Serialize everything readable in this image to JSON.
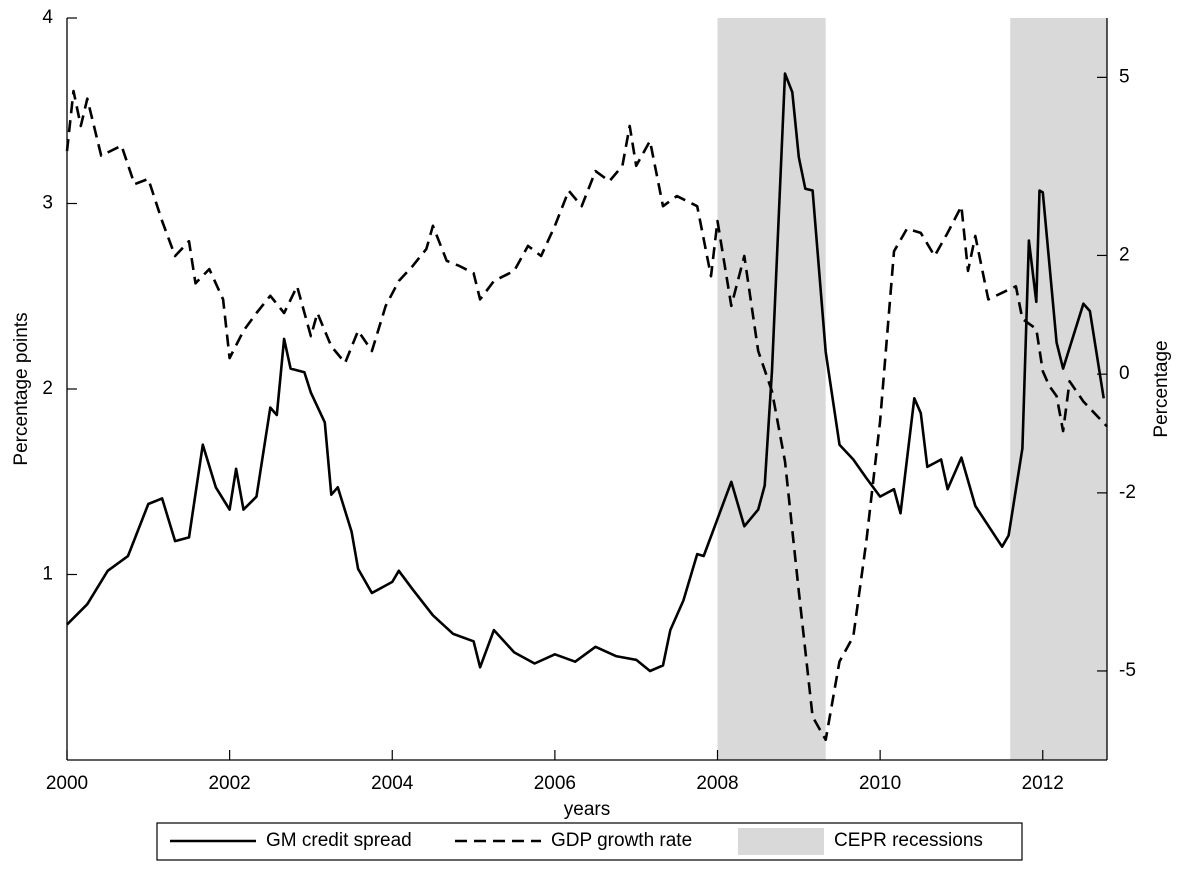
{
  "chart_data": {
    "type": "line",
    "x_label": "years",
    "y_label": "Percentage points",
    "y2_label": "Percentage",
    "xlim": [
      2000,
      2012.79
    ],
    "xticks": [
      2000,
      2002,
      2004,
      2006,
      2008,
      2010,
      2012
    ],
    "ylim": [
      0,
      4
    ],
    "yticks": [
      1,
      2,
      3,
      4
    ],
    "y2lim": [
      -6.5,
      6.0
    ],
    "y2ticks": [
      -5,
      -2,
      0,
      2,
      5
    ],
    "legend": "bottom-outside",
    "recessions": {
      "name": "CEPR recessions",
      "color": "#d9d9d9",
      "periods": [
        [
          2008.0,
          2009.33
        ],
        [
          2011.6,
          2012.79
        ]
      ]
    },
    "series": [
      {
        "name": "GM credit spread",
        "color": "#000000",
        "style": "solid",
        "x": [
          2000.0,
          2000.25,
          2000.5,
          2000.75,
          2001.0,
          2001.17,
          2001.33,
          2001.5,
          2001.67,
          2001.83,
          2002.0,
          2002.08,
          2002.17,
          2002.33,
          2002.5,
          2002.58,
          2002.67,
          2002.75,
          2002.92,
          2003.0,
          2003.17,
          2003.25,
          2003.33,
          2003.5,
          2003.58,
          2003.75,
          2004.0,
          2004.08,
          2004.25,
          2004.5,
          2004.75,
          2005.0,
          2005.08,
          2005.25,
          2005.5,
          2005.75,
          2006.0,
          2006.25,
          2006.5,
          2006.75,
          2007.0,
          2007.17,
          2007.33,
          2007.42,
          2007.58,
          2007.75,
          2007.83,
          2008.0,
          2008.17,
          2008.33,
          2008.5,
          2008.58,
          2008.67,
          2008.83,
          2008.92,
          2009.0,
          2009.08,
          2009.17,
          2009.33,
          2009.5,
          2009.67,
          2009.83,
          2010.0,
          2010.17,
          2010.25,
          2010.42,
          2010.5,
          2010.58,
          2010.75,
          2010.83,
          2011.0,
          2011.17,
          2011.5,
          2011.58,
          2011.75,
          2011.83,
          2011.92,
          2011.96,
          2012.0,
          2012.17,
          2012.25,
          2012.5,
          2012.58,
          2012.75
        ],
        "values": [
          0.73,
          0.84,
          1.02,
          1.1,
          1.38,
          1.41,
          1.18,
          1.2,
          1.7,
          1.47,
          1.35,
          1.57,
          1.35,
          1.42,
          1.9,
          1.86,
          2.27,
          2.11,
          2.09,
          1.98,
          1.82,
          1.43,
          1.47,
          1.23,
          1.03,
          0.9,
          0.96,
          1.02,
          0.92,
          0.78,
          0.68,
          0.64,
          0.5,
          0.7,
          0.58,
          0.52,
          0.57,
          0.53,
          0.61,
          0.56,
          0.54,
          0.48,
          0.51,
          0.7,
          0.86,
          1.11,
          1.1,
          1.3,
          1.5,
          1.26,
          1.35,
          1.48,
          2.1,
          3.7,
          3.6,
          3.25,
          3.08,
          3.07,
          2.2,
          1.7,
          1.62,
          1.52,
          1.42,
          1.46,
          1.33,
          1.95,
          1.87,
          1.58,
          1.62,
          1.46,
          1.63,
          1.37,
          1.15,
          1.21,
          1.68,
          2.8,
          2.47,
          3.07,
          3.06,
          2.25,
          2.11,
          2.46,
          2.42,
          1.95
        ]
      },
      {
        "name": "GDP growth rate",
        "color": "#000000",
        "style": "dashed",
        "axis": "y2",
        "x": [
          2000.0,
          2000.08,
          2000.17,
          2000.25,
          2000.42,
          2000.67,
          2000.83,
          2001.0,
          2001.17,
          2001.33,
          2001.5,
          2001.58,
          2001.75,
          2001.92,
          2002.0,
          2002.17,
          2002.33,
          2002.5,
          2002.67,
          2002.83,
          2003.0,
          2003.08,
          2003.25,
          2003.42,
          2003.58,
          2003.75,
          2003.92,
          2004.08,
          2004.25,
          2004.42,
          2004.5,
          2004.67,
          2004.83,
          2005.0,
          2005.08,
          2005.25,
          2005.5,
          2005.67,
          2005.83,
          2006.0,
          2006.17,
          2006.33,
          2006.5,
          2006.67,
          2006.83,
          2006.92,
          2007.0,
          2007.17,
          2007.33,
          2007.5,
          2007.75,
          2007.92,
          2008.0,
          2008.17,
          2008.33,
          2008.5,
          2008.67,
          2008.83,
          2009.0,
          2009.17,
          2009.33,
          2009.5,
          2009.67,
          2009.83,
          2010.0,
          2010.17,
          2010.33,
          2010.5,
          2010.67,
          2010.83,
          2011.0,
          2011.08,
          2011.17,
          2011.33,
          2011.5,
          2011.67,
          2011.75,
          2011.92,
          2012.0,
          2012.08,
          2012.17,
          2012.25,
          2012.33,
          2012.5,
          2012.79
        ],
        "values": [
          3.76,
          4.77,
          4.18,
          4.64,
          3.68,
          3.85,
          3.2,
          3.29,
          2.58,
          1.99,
          2.24,
          1.53,
          1.77,
          1.26,
          0.27,
          0.73,
          1.03,
          1.32,
          1.03,
          1.48,
          0.64,
          1.03,
          0.47,
          0.19,
          0.73,
          0.39,
          1.15,
          1.57,
          1.82,
          2.11,
          2.5,
          1.91,
          1.82,
          1.7,
          1.26,
          1.57,
          1.74,
          2.16,
          1.99,
          2.5,
          3.09,
          2.83,
          3.42,
          3.25,
          3.51,
          4.18,
          3.51,
          3.93,
          2.83,
          3.0,
          2.83,
          1.65,
          2.58,
          1.15,
          1.99,
          0.39,
          -0.29,
          -1.47,
          -3.66,
          -5.77,
          -6.16,
          -4.84,
          -4.42,
          -2.82,
          -0.79,
          2.07,
          2.45,
          2.38,
          1.99,
          2.38,
          2.83,
          1.74,
          2.33,
          1.26,
          1.37,
          1.48,
          0.93,
          0.76,
          0.05,
          -0.2,
          -0.37,
          -0.96,
          -0.12,
          -0.46,
          -0.88
        ]
      }
    ]
  }
}
